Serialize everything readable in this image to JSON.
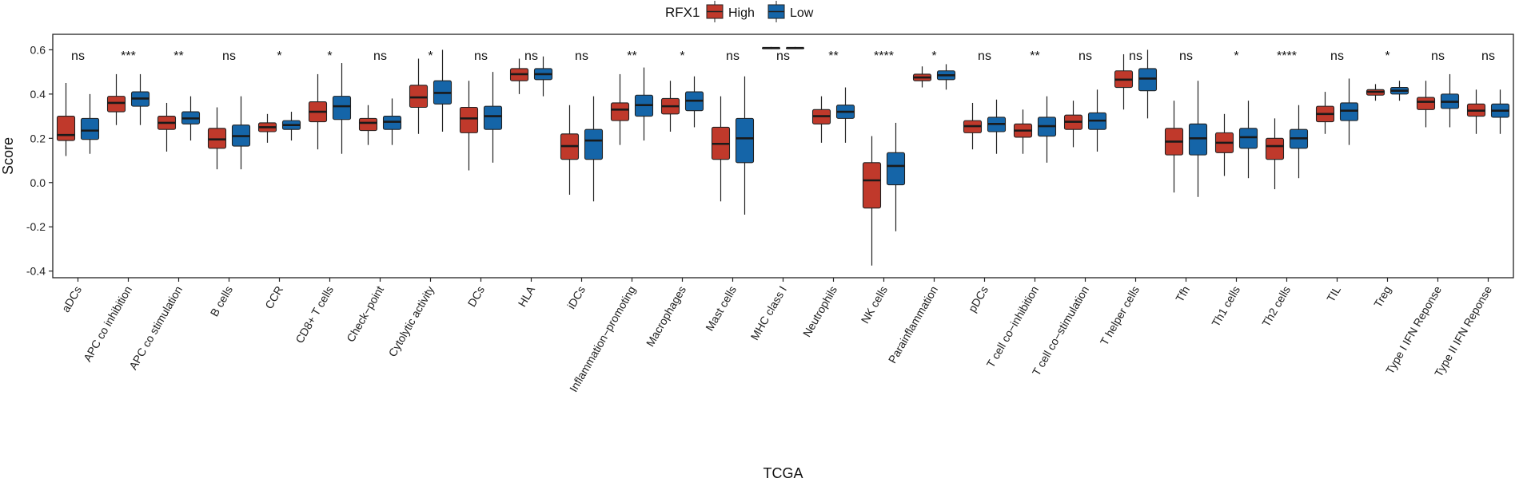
{
  "chart_data": {
    "type": "boxplot",
    "xlabel": "TCGA",
    "ylabel": "Score",
    "ylim": [
      -0.43,
      0.67
    ],
    "yticks": [
      -0.4,
      -0.2,
      0.0,
      0.2,
      0.4,
      0.6
    ],
    "ytick_labels": [
      "-0.4",
      "-0.2",
      "0.0",
      "0.2",
      "0.4",
      "0.6"
    ],
    "legend": {
      "title": "RFX1",
      "position": "top",
      "entries": [
        {
          "name": "High",
          "color": "#c0392b"
        },
        {
          "name": "Low",
          "color": "#1565a8"
        }
      ]
    },
    "colors": {
      "high": "#c0392b",
      "low": "#1565a8",
      "line": "#222222",
      "median": "#1a1a1a"
    },
    "categories": [
      {
        "name": "aDCs",
        "sig": "ns",
        "high": {
          "whislo": 0.12,
          "q1": 0.19,
          "med": 0.215,
          "q3": 0.3,
          "whishi": 0.45
        },
        "low": {
          "whislo": 0.13,
          "q1": 0.195,
          "med": 0.235,
          "q3": 0.29,
          "whishi": 0.4
        }
      },
      {
        "name": "APC co inhibition",
        "sig": "***",
        "high": {
          "whislo": 0.26,
          "q1": 0.32,
          "med": 0.36,
          "q3": 0.39,
          "whishi": 0.49
        },
        "low": {
          "whislo": 0.26,
          "q1": 0.345,
          "med": 0.38,
          "q3": 0.41,
          "whishi": 0.49
        }
      },
      {
        "name": "APC co stimulation",
        "sig": "**",
        "high": {
          "whislo": 0.14,
          "q1": 0.24,
          "med": 0.27,
          "q3": 0.3,
          "whishi": 0.36
        },
        "low": {
          "whislo": 0.19,
          "q1": 0.265,
          "med": 0.29,
          "q3": 0.32,
          "whishi": 0.39
        }
      },
      {
        "name": "B cells",
        "sig": "ns",
        "high": {
          "whislo": 0.06,
          "q1": 0.155,
          "med": 0.195,
          "q3": 0.245,
          "whishi": 0.34
        },
        "low": {
          "whislo": 0.06,
          "q1": 0.165,
          "med": 0.21,
          "q3": 0.26,
          "whishi": 0.39
        }
      },
      {
        "name": "CCR",
        "sig": "*",
        "high": {
          "whislo": 0.18,
          "q1": 0.23,
          "med": 0.25,
          "q3": 0.27,
          "whishi": 0.31
        },
        "low": {
          "whislo": 0.19,
          "q1": 0.24,
          "med": 0.26,
          "q3": 0.28,
          "whishi": 0.32
        }
      },
      {
        "name": "CD8+ T cells",
        "sig": "*",
        "high": {
          "whislo": 0.15,
          "q1": 0.275,
          "med": 0.32,
          "q3": 0.365,
          "whishi": 0.49
        },
        "low": {
          "whislo": 0.13,
          "q1": 0.285,
          "med": 0.345,
          "q3": 0.39,
          "whishi": 0.54
        }
      },
      {
        "name": "Check−point",
        "sig": "ns",
        "high": {
          "whislo": 0.17,
          "q1": 0.235,
          "med": 0.27,
          "q3": 0.29,
          "whishi": 0.35
        },
        "low": {
          "whislo": 0.17,
          "q1": 0.24,
          "med": 0.275,
          "q3": 0.3,
          "whishi": 0.38
        }
      },
      {
        "name": "Cytolytic activity",
        "sig": "*",
        "high": {
          "whislo": 0.22,
          "q1": 0.34,
          "med": 0.385,
          "q3": 0.44,
          "whishi": 0.56
        },
        "low": {
          "whislo": 0.23,
          "q1": 0.355,
          "med": 0.405,
          "q3": 0.46,
          "whishi": 0.6
        }
      },
      {
        "name": "DCs",
        "sig": "ns",
        "high": {
          "whislo": 0.055,
          "q1": 0.225,
          "med": 0.29,
          "q3": 0.34,
          "whishi": 0.46
        },
        "low": {
          "whislo": 0.09,
          "q1": 0.24,
          "med": 0.3,
          "q3": 0.345,
          "whishi": 0.5
        }
      },
      {
        "name": "HLA",
        "sig": "ns",
        "high": {
          "whislo": 0.4,
          "q1": 0.46,
          "med": 0.49,
          "q3": 0.515,
          "whishi": 0.56
        },
        "low": {
          "whislo": 0.39,
          "q1": 0.465,
          "med": 0.49,
          "q3": 0.515,
          "whishi": 0.57
        }
      },
      {
        "name": "iDCs",
        "sig": "ns",
        "high": {
          "whislo": -0.055,
          "q1": 0.105,
          "med": 0.165,
          "q3": 0.22,
          "whishi": 0.35
        },
        "low": {
          "whislo": -0.085,
          "q1": 0.105,
          "med": 0.19,
          "q3": 0.24,
          "whishi": 0.39
        }
      },
      {
        "name": "Inflammation−promoting",
        "sig": "**",
        "high": {
          "whislo": 0.17,
          "q1": 0.28,
          "med": 0.33,
          "q3": 0.36,
          "whishi": 0.49
        },
        "low": {
          "whislo": 0.19,
          "q1": 0.3,
          "med": 0.35,
          "q3": 0.395,
          "whishi": 0.52
        }
      },
      {
        "name": "Macrophages",
        "sig": "*",
        "high": {
          "whislo": 0.23,
          "q1": 0.31,
          "med": 0.345,
          "q3": 0.38,
          "whishi": 0.46
        },
        "low": {
          "whislo": 0.25,
          "q1": 0.325,
          "med": 0.37,
          "q3": 0.41,
          "whishi": 0.48
        }
      },
      {
        "name": "Mast cells",
        "sig": "ns",
        "high": {
          "whislo": -0.085,
          "q1": 0.105,
          "med": 0.175,
          "q3": 0.25,
          "whishi": 0.39
        },
        "low": {
          "whislo": -0.145,
          "q1": 0.09,
          "med": 0.2,
          "q3": 0.29,
          "whishi": 0.48
        }
      },
      {
        "name": "MHC class I",
        "sig": "ns",
        "high": {
          "whislo": 0.603,
          "q1": 0.606,
          "med": 0.608,
          "q3": 0.61,
          "whishi": 0.613
        },
        "low": {
          "whislo": 0.603,
          "q1": 0.606,
          "med": 0.608,
          "q3": 0.61,
          "whishi": 0.613
        }
      },
      {
        "name": "Neutrophils",
        "sig": "**",
        "high": {
          "whislo": 0.18,
          "q1": 0.265,
          "med": 0.3,
          "q3": 0.33,
          "whishi": 0.39
        },
        "low": {
          "whislo": 0.18,
          "q1": 0.29,
          "med": 0.32,
          "q3": 0.35,
          "whishi": 0.43
        }
      },
      {
        "name": "NK cells",
        "sig": "****",
        "high": {
          "whislo": -0.375,
          "q1": -0.115,
          "med": 0.01,
          "q3": 0.09,
          "whishi": 0.21
        },
        "low": {
          "whislo": -0.22,
          "q1": -0.01,
          "med": 0.075,
          "q3": 0.135,
          "whishi": 0.27
        }
      },
      {
        "name": "Parainflammation",
        "sig": "*",
        "high": {
          "whislo": 0.43,
          "q1": 0.46,
          "med": 0.475,
          "q3": 0.49,
          "whishi": 0.525
        },
        "low": {
          "whislo": 0.42,
          "q1": 0.465,
          "med": 0.485,
          "q3": 0.505,
          "whishi": 0.535
        }
      },
      {
        "name": "pDCs",
        "sig": "ns",
        "high": {
          "whislo": 0.15,
          "q1": 0.225,
          "med": 0.255,
          "q3": 0.28,
          "whishi": 0.36
        },
        "low": {
          "whislo": 0.13,
          "q1": 0.23,
          "med": 0.265,
          "q3": 0.295,
          "whishi": 0.375
        }
      },
      {
        "name": "T cell co−inhibition",
        "sig": "**",
        "high": {
          "whislo": 0.13,
          "q1": 0.205,
          "med": 0.235,
          "q3": 0.265,
          "whishi": 0.33
        },
        "low": {
          "whislo": 0.09,
          "q1": 0.21,
          "med": 0.255,
          "q3": 0.295,
          "whishi": 0.39
        }
      },
      {
        "name": "T cell co−stimulation",
        "sig": "ns",
        "high": {
          "whislo": 0.16,
          "q1": 0.24,
          "med": 0.275,
          "q3": 0.305,
          "whishi": 0.37
        },
        "low": {
          "whislo": 0.14,
          "q1": 0.24,
          "med": 0.28,
          "q3": 0.315,
          "whishi": 0.42
        }
      },
      {
        "name": "T helper cells",
        "sig": "ns",
        "high": {
          "whislo": 0.33,
          "q1": 0.43,
          "med": 0.465,
          "q3": 0.505,
          "whishi": 0.58
        },
        "low": {
          "whislo": 0.29,
          "q1": 0.415,
          "med": 0.47,
          "q3": 0.515,
          "whishi": 0.6
        }
      },
      {
        "name": "Tfh",
        "sig": "ns",
        "high": {
          "whislo": -0.045,
          "q1": 0.125,
          "med": 0.185,
          "q3": 0.245,
          "whishi": 0.37
        },
        "low": {
          "whislo": -0.065,
          "q1": 0.125,
          "med": 0.2,
          "q3": 0.265,
          "whishi": 0.46
        }
      },
      {
        "name": "Th1 cells",
        "sig": "*",
        "high": {
          "whislo": 0.03,
          "q1": 0.135,
          "med": 0.18,
          "q3": 0.225,
          "whishi": 0.31
        },
        "low": {
          "whislo": 0.02,
          "q1": 0.155,
          "med": 0.205,
          "q3": 0.245,
          "whishi": 0.37
        }
      },
      {
        "name": "Th2 cells",
        "sig": "****",
        "high": {
          "whislo": -0.03,
          "q1": 0.105,
          "med": 0.165,
          "q3": 0.2,
          "whishi": 0.29
        },
        "low": {
          "whislo": 0.02,
          "q1": 0.155,
          "med": 0.2,
          "q3": 0.24,
          "whishi": 0.35
        }
      },
      {
        "name": "TIL",
        "sig": "ns",
        "high": {
          "whislo": 0.22,
          "q1": 0.275,
          "med": 0.31,
          "q3": 0.345,
          "whishi": 0.41
        },
        "low": {
          "whislo": 0.17,
          "q1": 0.28,
          "med": 0.325,
          "q3": 0.36,
          "whishi": 0.47
        }
      },
      {
        "name": "Treg",
        "sig": "*",
        "high": {
          "whislo": 0.37,
          "q1": 0.395,
          "med": 0.41,
          "q3": 0.42,
          "whishi": 0.445
        },
        "low": {
          "whislo": 0.37,
          "q1": 0.4,
          "med": 0.415,
          "q3": 0.43,
          "whishi": 0.46
        }
      },
      {
        "name": "Type I IFN Reponse",
        "sig": "ns",
        "high": {
          "whislo": 0.25,
          "q1": 0.33,
          "med": 0.365,
          "q3": 0.385,
          "whishi": 0.46
        },
        "low": {
          "whislo": 0.25,
          "q1": 0.335,
          "med": 0.365,
          "q3": 0.4,
          "whishi": 0.49
        }
      },
      {
        "name": "Type II IFN Reponse",
        "sig": "ns",
        "high": {
          "whislo": 0.22,
          "q1": 0.3,
          "med": 0.325,
          "q3": 0.355,
          "whishi": 0.42
        },
        "low": {
          "whislo": 0.22,
          "q1": 0.295,
          "med": 0.325,
          "q3": 0.355,
          "whishi": 0.42
        }
      }
    ]
  }
}
